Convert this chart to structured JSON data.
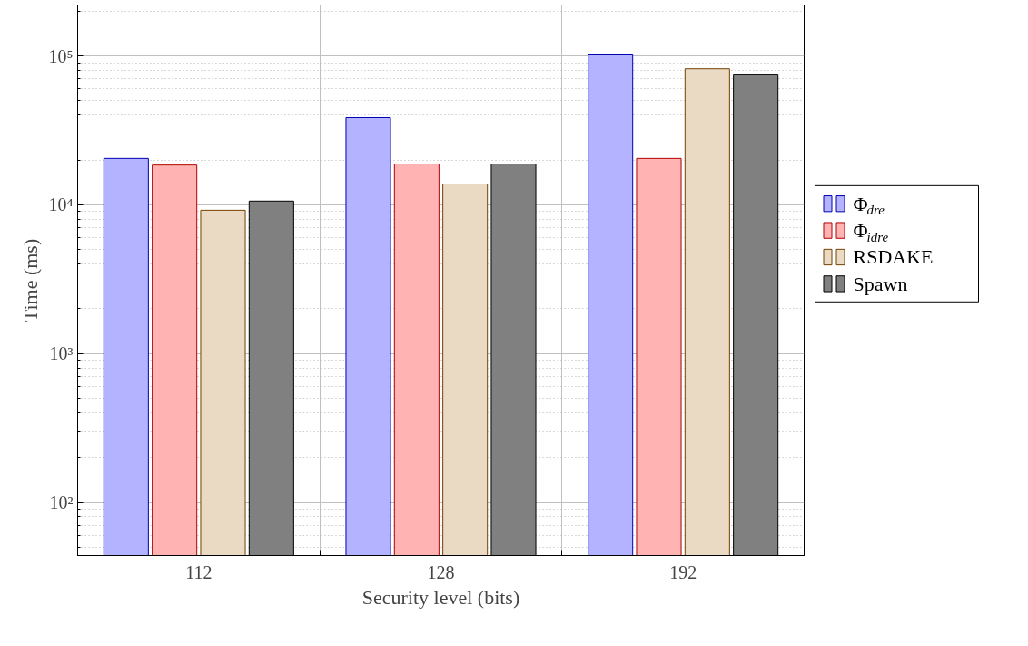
{
  "chart_data": {
    "type": "bar",
    "xlabel": "Security level (bits)",
    "ylabel": "Time (ms)",
    "categories": [
      "112",
      "128",
      "192"
    ],
    "series": [
      {
        "name": "Φ$_{dre}$",
        "color": "#b3b3ff",
        "values": [
          20500,
          38500,
          103000
        ]
      },
      {
        "name": "Φ$_{idre}$",
        "color": "#ffb3b3",
        "values": [
          18500,
          18800,
          20500
        ]
      },
      {
        "name": "RSDAKE",
        "color": "#ead9c3",
        "values": [
          9200,
          13800,
          82000
        ]
      },
      {
        "name": "Spawn",
        "color": "#808080",
        "values": [
          10600,
          18800,
          75500
        ]
      }
    ],
    "log": "y",
    "ylim": [
      44,
      220000
    ],
    "yticks": [
      {
        "value": 100,
        "label": "10²"
      },
      {
        "value": 1000,
        "label": "10³"
      },
      {
        "value": 10000,
        "label": "10⁴"
      },
      {
        "value": 100000,
        "label": "10⁵"
      }
    ],
    "grid": true,
    "legend": "right"
  }
}
